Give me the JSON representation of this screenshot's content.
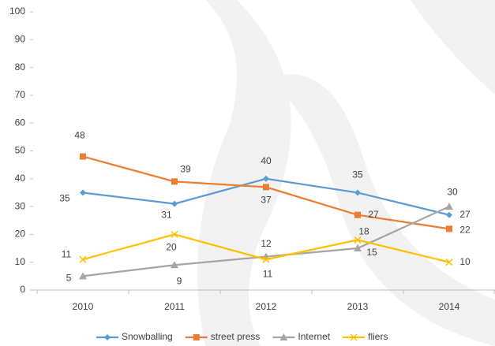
{
  "chart_data": {
    "type": "line",
    "categories": [
      "2010",
      "2011",
      "2012",
      "2013",
      "2014"
    ],
    "series": [
      {
        "name": "Snowballing",
        "color": "#5b9bd5",
        "marker": "diamond",
        "values": [
          35,
          31,
          40,
          35,
          27
        ]
      },
      {
        "name": "street press",
        "color": "#ed7d31",
        "marker": "square",
        "values": [
          48,
          39,
          37,
          27,
          22
        ]
      },
      {
        "name": "Internet",
        "color": "#a5a5a5",
        "marker": "triangle",
        "values": [
          5,
          9,
          12,
          15,
          30
        ]
      },
      {
        "name": "fliers",
        "color": "#ffc000",
        "marker": "x",
        "values": [
          11,
          20,
          11,
          18,
          10
        ]
      }
    ],
    "ylim": [
      0,
      100
    ],
    "yticks": [
      0,
      10,
      20,
      30,
      40,
      50,
      60,
      70,
      80,
      90,
      100
    ],
    "grid": false,
    "legend": "bottom"
  }
}
